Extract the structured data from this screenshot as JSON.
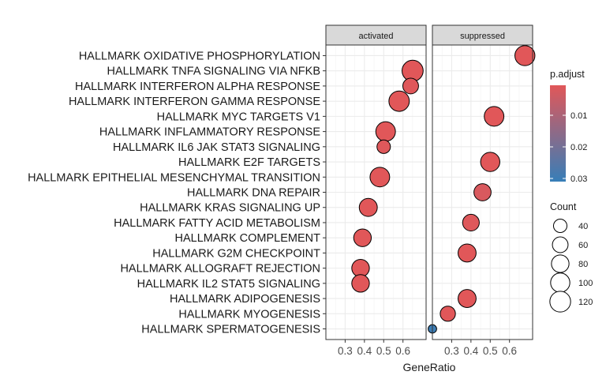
{
  "chart_data": {
    "type": "scatter",
    "xlabel": "GeneRatio",
    "ylabel": "",
    "title": "",
    "facets": [
      "activated",
      "suppressed"
    ],
    "xlim": [
      0.2,
      0.72
    ],
    "xticks": [
      "0.3",
      "0.4",
      "0.5",
      "0.6"
    ],
    "grid": true,
    "legend_position": "right",
    "terms": [
      "HALLMARK OXIDATIVE PHOSPHORYLATION",
      "HALLMARK TNFA SIGNALING VIA NFKB",
      "HALLMARK INTERFERON ALPHA RESPONSE",
      "HALLMARK INTERFERON GAMMA RESPONSE",
      "HALLMARK MYC TARGETS V1",
      "HALLMARK INFLAMMATORY RESPONSE",
      "HALLMARK IL6 JAK STAT3 SIGNALING",
      "HALLMARK E2F TARGETS",
      "HALLMARK EPITHELIAL MESENCHYMAL TRANSITION",
      "HALLMARK DNA REPAIR",
      "HALLMARK KRAS SIGNALING UP",
      "HALLMARK FATTY ACID METABOLISM",
      "HALLMARK COMPLEMENT",
      "HALLMARK G2M CHECKPOINT",
      "HALLMARK ALLOGRAFT REJECTION",
      "HALLMARK IL2 STAT5 SIGNALING",
      "HALLMARK ADIPOGENESIS",
      "HALLMARK MYOGENESIS",
      "HALLMARK SPERMATOGENESIS"
    ],
    "series": [
      {
        "name": "activated",
        "points": [
          {
            "term": "HALLMARK TNFA SIGNALING VIA NFKB",
            "x": 0.65,
            "count": 125,
            "p_adjust": 0.0005
          },
          {
            "term": "HALLMARK INTERFERON ALPHA RESPONSE",
            "x": 0.64,
            "count": 60,
            "p_adjust": 0.0008
          },
          {
            "term": "HALLMARK INTERFERON GAMMA RESPONSE",
            "x": 0.58,
            "count": 115,
            "p_adjust": 0.0005
          },
          {
            "term": "HALLMARK INFLAMMATORY RESPONSE",
            "x": 0.51,
            "count": 105,
            "p_adjust": 0.0005
          },
          {
            "term": "HALLMARK IL6 JAK STAT3 SIGNALING",
            "x": 0.5,
            "count": 40,
            "p_adjust": 0.001
          },
          {
            "term": "HALLMARK EPITHELIAL MESENCHYMAL TRANSITION",
            "x": 0.48,
            "count": 105,
            "p_adjust": 0.0005
          },
          {
            "term": "HALLMARK KRAS SIGNALING UP",
            "x": 0.42,
            "count": 85,
            "p_adjust": 0.0005
          },
          {
            "term": "HALLMARK COMPLEMENT",
            "x": 0.39,
            "count": 80,
            "p_adjust": 0.0005
          },
          {
            "term": "HALLMARK ALLOGRAFT REJECTION",
            "x": 0.38,
            "count": 80,
            "p_adjust": 0.0005
          },
          {
            "term": "HALLMARK IL2 STAT5 SIGNALING",
            "x": 0.38,
            "count": 80,
            "p_adjust": 0.0005
          }
        ]
      },
      {
        "name": "suppressed",
        "points": [
          {
            "term": "HALLMARK OXIDATIVE PHOSPHORYLATION",
            "x": 0.68,
            "count": 110,
            "p_adjust": 0.0005
          },
          {
            "term": "HALLMARK MYC TARGETS V1",
            "x": 0.52,
            "count": 105,
            "p_adjust": 0.0005
          },
          {
            "term": "HALLMARK E2F TARGETS",
            "x": 0.5,
            "count": 100,
            "p_adjust": 0.0005
          },
          {
            "term": "HALLMARK DNA REPAIR",
            "x": 0.46,
            "count": 75,
            "p_adjust": 0.002
          },
          {
            "term": "HALLMARK FATTY ACID METABOLISM",
            "x": 0.4,
            "count": 70,
            "p_adjust": 0.001
          },
          {
            "term": "HALLMARK G2M CHECKPOINT",
            "x": 0.38,
            "count": 85,
            "p_adjust": 0.0005
          },
          {
            "term": "HALLMARK ADIPOGENESIS",
            "x": 0.38,
            "count": 85,
            "p_adjust": 0.0005
          },
          {
            "term": "HALLMARK MYOGENESIS",
            "x": 0.28,
            "count": 55,
            "p_adjust": 0.0005
          },
          {
            "term": "HALLMARK SPERMATOGENESIS",
            "x": 0.2,
            "count": 10,
            "p_adjust": 0.03
          }
        ]
      }
    ],
    "color_legend": {
      "title": "p.adjust",
      "range": [
        0.0005,
        0.031
      ],
      "ticks": [
        {
          "value": 0.01,
          "label": "0.01"
        },
        {
          "value": 0.02,
          "label": "0.02"
        },
        {
          "value": 0.03,
          "label": "0.03"
        }
      ],
      "low_color": "#e15759",
      "high_color": "#377eb8"
    },
    "size_legend": {
      "title": "Count",
      "values": [
        40,
        60,
        80,
        100,
        120
      ],
      "labels": [
        "40",
        "60",
        "80",
        "100",
        "120"
      ]
    }
  }
}
